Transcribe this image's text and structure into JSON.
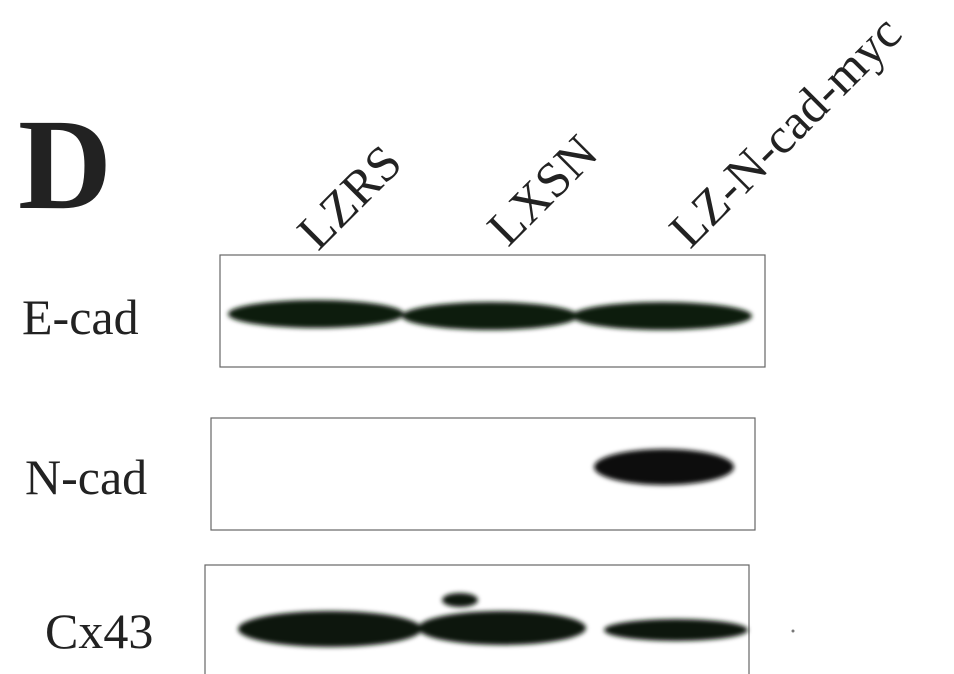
{
  "panel_label": "D",
  "lanes": [
    "LZRS",
    "LXSN",
    "LZ-N-cad-myc"
  ],
  "blots": [
    {
      "label": "E-cad"
    },
    {
      "label": "N-cad"
    },
    {
      "label": "Cx43"
    }
  ]
}
